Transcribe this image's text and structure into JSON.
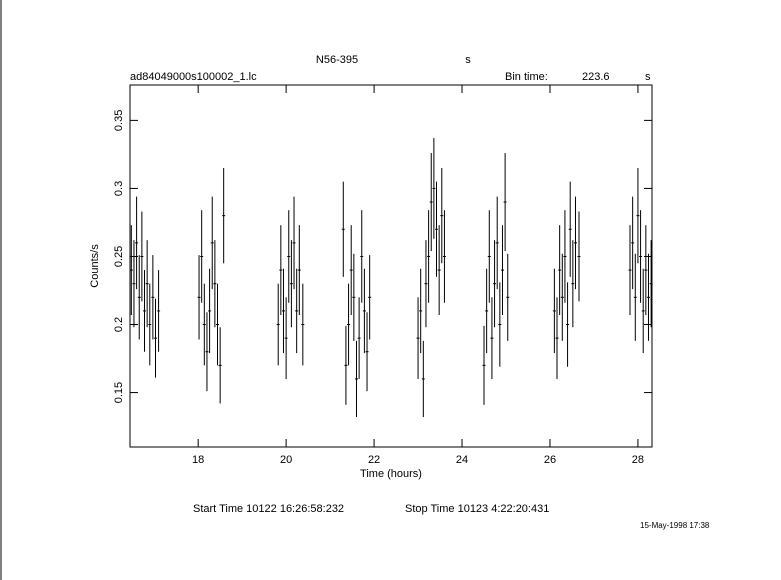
{
  "chart_data": {
    "type": "errorbar",
    "title": "N56-395",
    "title_unit": "s",
    "subtitle": "ad84049000s100002_1.lc",
    "bin_time_label": "Bin time:",
    "bin_time": "223.6",
    "bin_time_unit": "s",
    "xlabel": "Time (hours)",
    "ylabel": "Counts/s",
    "start_time": "Start Time 10122 16:26:58:232",
    "stop_time": "Stop Time 10123  4:22:20:431",
    "footer_date": "15-May-1998 17:38",
    "xlim": [
      16.45,
      28.32
    ],
    "ylim": [
      0.11,
      0.376
    ],
    "xticks": [
      18,
      20,
      22,
      24,
      26,
      28
    ],
    "yticks": [
      0.15,
      0.2,
      0.25,
      0.3,
      0.35
    ],
    "color": "#000000",
    "x": [
      16.48,
      16.54,
      16.6,
      16.66,
      16.72,
      16.78,
      16.84,
      16.9,
      16.97,
      17.03,
      17.1,
      18.02,
      18.08,
      18.14,
      18.2,
      18.26,
      18.32,
      18.38,
      18.44,
      18.5,
      18.58,
      19.82,
      19.88,
      19.94,
      20.0,
      20.06,
      20.12,
      20.18,
      20.24,
      20.3,
      20.38,
      21.3,
      21.36,
      21.42,
      21.48,
      21.54,
      21.6,
      21.66,
      21.72,
      21.78,
      21.84,
      21.9,
      23.0,
      23.06,
      23.12,
      23.18,
      23.24,
      23.3,
      23.36,
      23.42,
      23.48,
      23.54,
      23.6,
      24.5,
      24.56,
      24.62,
      24.68,
      24.74,
      24.8,
      24.86,
      24.92,
      24.98,
      25.04,
      26.1,
      26.16,
      26.22,
      26.28,
      26.34,
      26.4,
      26.46,
      26.52,
      26.58,
      26.66,
      27.82,
      27.88,
      27.94,
      28.0,
      28.06,
      28.12,
      28.18,
      28.24,
      28.3
    ],
    "values": [
      0.24,
      0.23,
      0.26,
      0.22,
      0.25,
      0.21,
      0.23,
      0.2,
      0.22,
      0.19,
      0.21,
      0.22,
      0.25,
      0.2,
      0.18,
      0.21,
      0.26,
      0.23,
      0.2,
      0.17,
      0.28,
      0.2,
      0.24,
      0.21,
      0.19,
      0.25,
      0.23,
      0.26,
      0.21,
      0.24,
      0.2,
      0.27,
      0.17,
      0.2,
      0.24,
      0.22,
      0.16,
      0.19,
      0.25,
      0.21,
      0.18,
      0.22,
      0.19,
      0.21,
      0.16,
      0.23,
      0.25,
      0.29,
      0.3,
      0.27,
      0.24,
      0.28,
      0.25,
      0.17,
      0.21,
      0.25,
      0.19,
      0.23,
      0.26,
      0.2,
      0.24,
      0.29,
      0.22,
      0.21,
      0.19,
      0.24,
      0.22,
      0.25,
      0.2,
      0.27,
      0.23,
      0.26,
      0.25,
      0.24,
      0.26,
      0.22,
      0.28,
      0.25,
      0.21,
      0.24,
      0.22,
      0.23
    ],
    "errors": [
      0.033,
      0.032,
      0.034,
      0.031,
      0.033,
      0.03,
      0.032,
      0.03,
      0.031,
      0.029,
      0.03,
      0.031,
      0.034,
      0.03,
      0.029,
      0.031,
      0.034,
      0.032,
      0.03,
      0.028,
      0.035,
      0.03,
      0.033,
      0.031,
      0.03,
      0.034,
      0.032,
      0.034,
      0.031,
      0.033,
      0.03,
      0.035,
      0.029,
      0.03,
      0.033,
      0.032,
      0.028,
      0.03,
      0.034,
      0.031,
      0.029,
      0.031,
      0.03,
      0.031,
      0.028,
      0.032,
      0.034,
      0.036,
      0.037,
      0.035,
      0.033,
      0.035,
      0.034,
      0.029,
      0.031,
      0.034,
      0.03,
      0.032,
      0.034,
      0.031,
      0.033,
      0.036,
      0.032,
      0.031,
      0.03,
      0.033,
      0.032,
      0.034,
      0.031,
      0.035,
      0.032,
      0.034,
      0.033,
      0.033,
      0.034,
      0.032,
      0.035,
      0.034,
      0.031,
      0.033,
      0.032,
      0.032
    ]
  }
}
